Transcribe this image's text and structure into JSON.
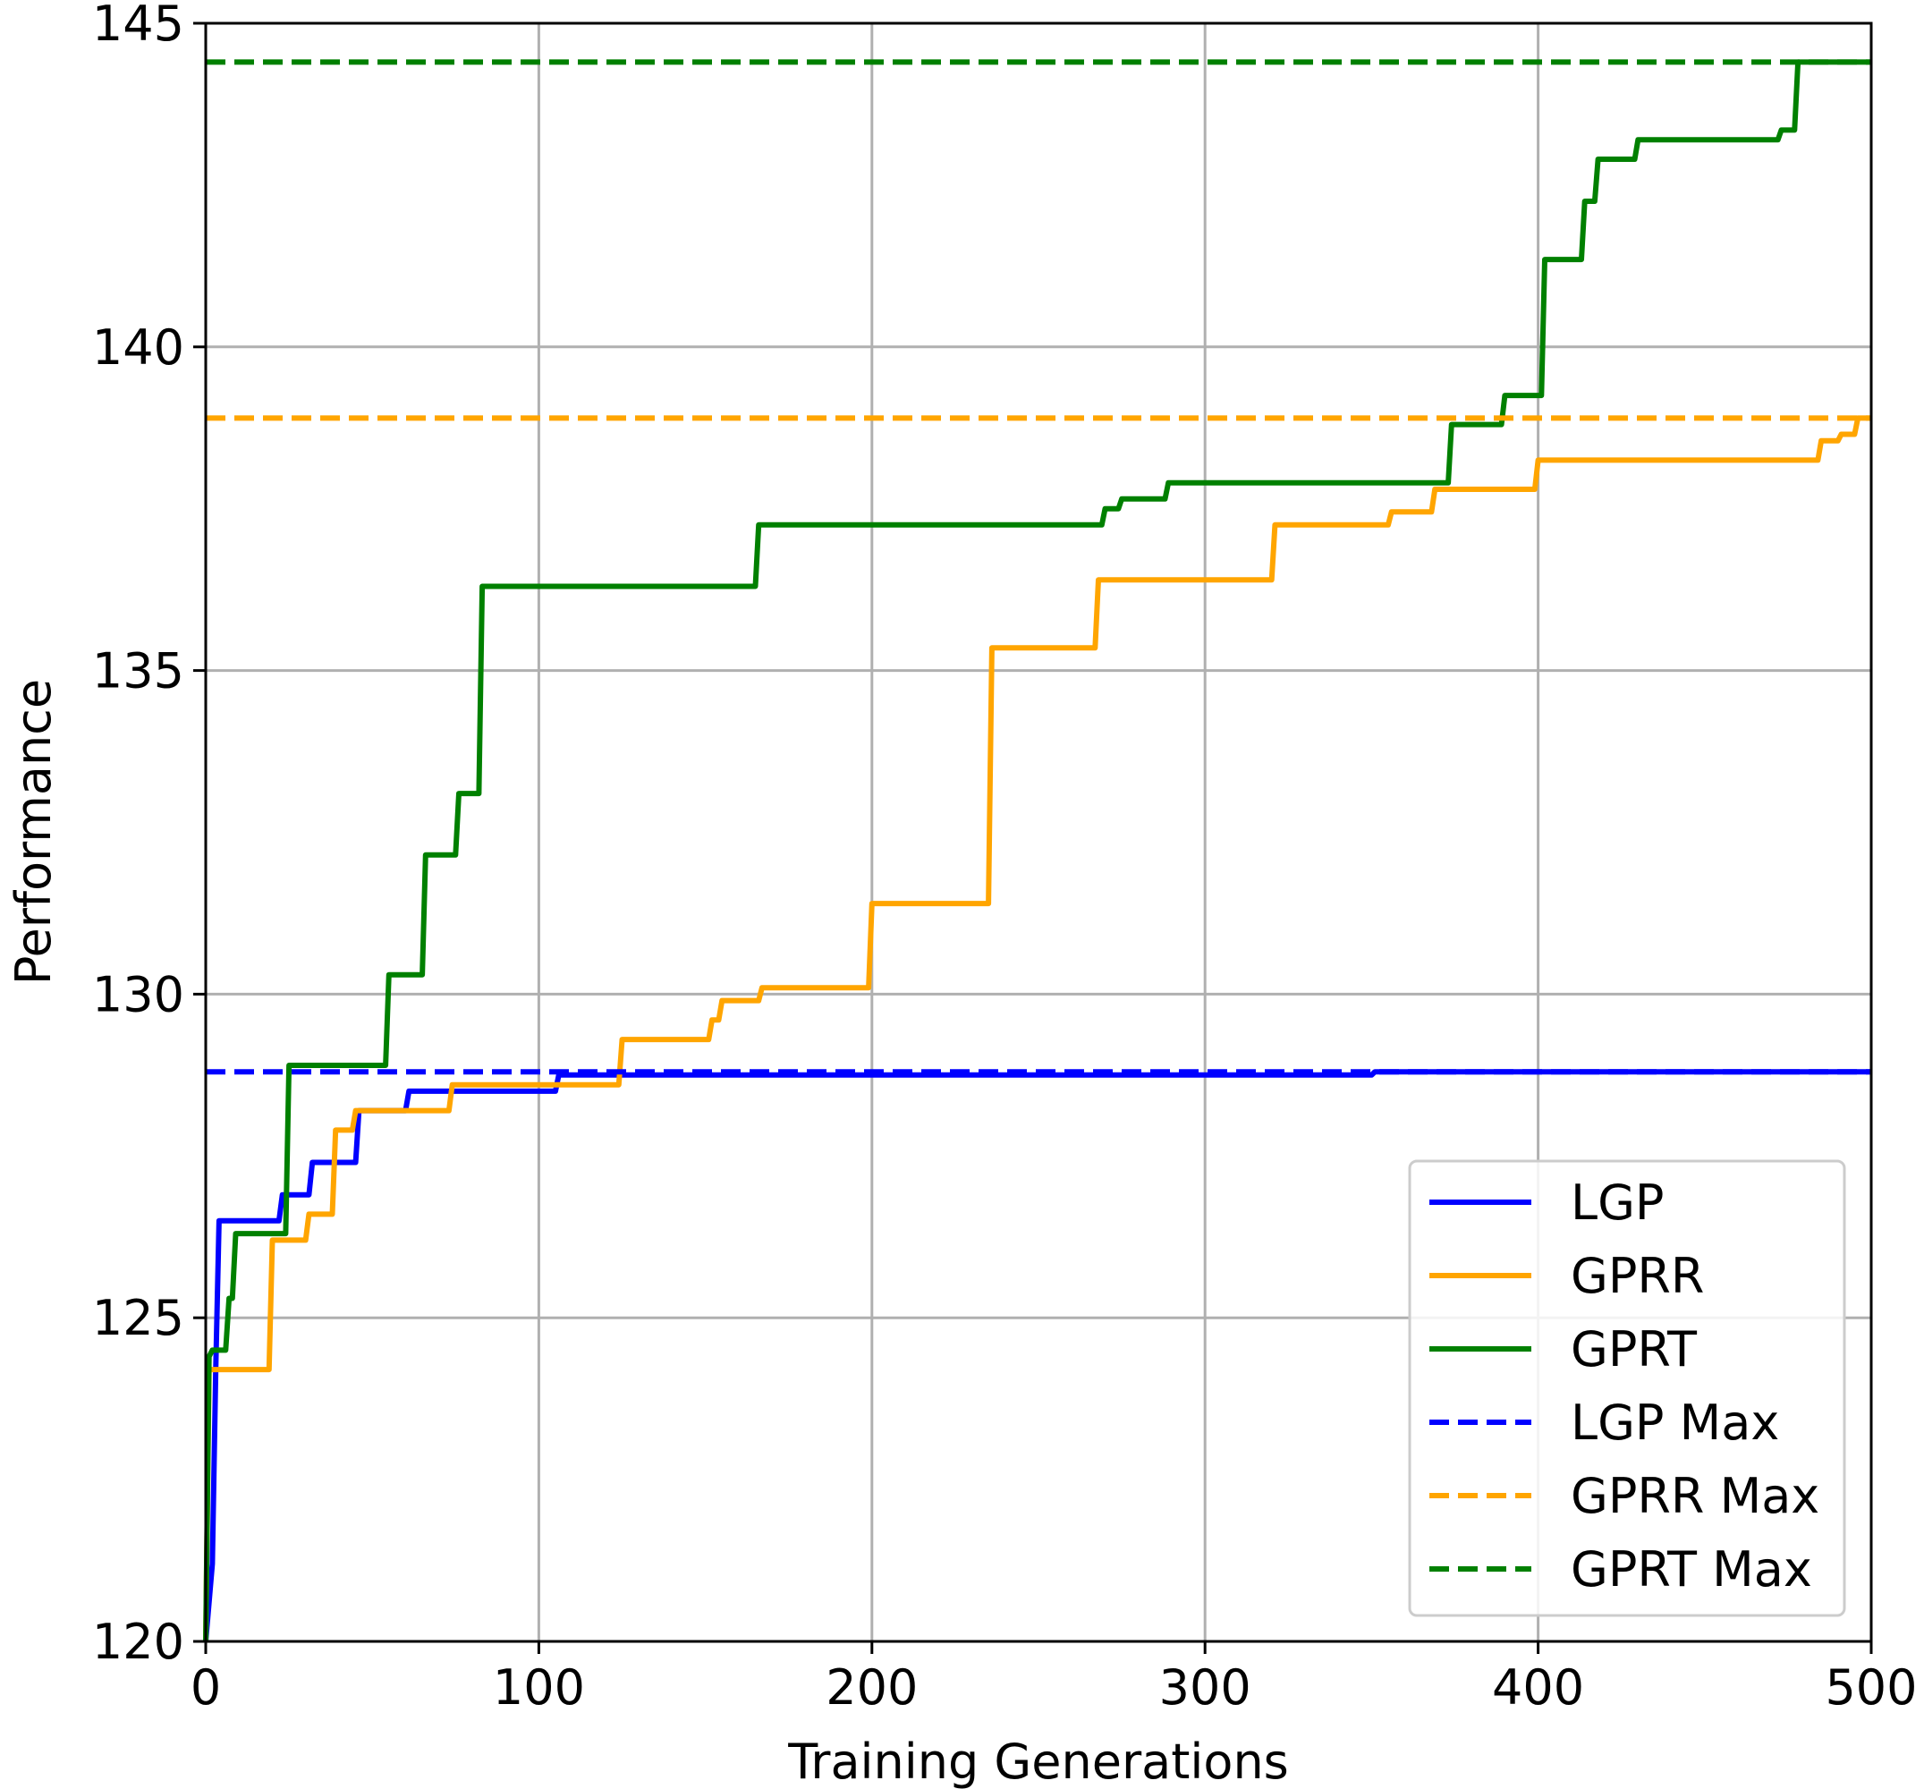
{
  "chart_data": {
    "type": "line",
    "title": "",
    "xlabel": "Training Generations",
    "ylabel": "Performance",
    "xlim": [
      0,
      500
    ],
    "ylim": [
      120,
      145
    ],
    "xticks": [
      0,
      100,
      200,
      300,
      400,
      500
    ],
    "xtick_labels": [
      "0",
      "100",
      "200",
      "300",
      "400",
      "500"
    ],
    "yticks": [
      120,
      125,
      130,
      135,
      140,
      145
    ],
    "ytick_labels": [
      "120",
      "125",
      "130",
      "135",
      "140",
      "145"
    ],
    "grid": true,
    "legend_position": "lower-right",
    "series": [
      {
        "name": "LGP",
        "color": "#0000ff",
        "style": "solid",
        "step": true,
        "points": [
          [
            0,
            120.0
          ],
          [
            2,
            121.2
          ],
          [
            3,
            124.2
          ],
          [
            4,
            126.5
          ],
          [
            22,
            126.5
          ],
          [
            23,
            126.9
          ],
          [
            31,
            126.9
          ],
          [
            32,
            127.4
          ],
          [
            45,
            127.4
          ],
          [
            46,
            128.2
          ],
          [
            60,
            128.2
          ],
          [
            61,
            128.5
          ],
          [
            105,
            128.5
          ],
          [
            106,
            128.75
          ],
          [
            350,
            128.75
          ],
          [
            351,
            128.8
          ],
          [
            500,
            128.8
          ]
        ]
      },
      {
        "name": "GPRR",
        "color": "#ffa500",
        "style": "solid",
        "step": true,
        "points": [
          [
            0,
            120.0
          ],
          [
            1,
            124.2
          ],
          [
            19,
            124.2
          ],
          [
            20,
            126.2
          ],
          [
            30,
            126.2
          ],
          [
            31,
            126.6
          ],
          [
            38,
            126.6
          ],
          [
            39,
            127.9
          ],
          [
            44,
            127.9
          ],
          [
            45,
            128.2
          ],
          [
            73,
            128.2
          ],
          [
            74,
            128.6
          ],
          [
            124,
            128.6
          ],
          [
            125,
            129.3
          ],
          [
            151,
            129.3
          ],
          [
            152,
            129.6
          ],
          [
            154,
            129.6
          ],
          [
            155,
            129.9
          ],
          [
            166,
            129.9
          ],
          [
            167,
            130.1
          ],
          [
            199,
            130.1
          ],
          [
            200,
            131.4
          ],
          [
            235,
            131.4
          ],
          [
            236,
            135.35
          ],
          [
            267,
            135.35
          ],
          [
            268,
            136.4
          ],
          [
            320,
            136.4
          ],
          [
            321,
            137.25
          ],
          [
            355,
            137.25
          ],
          [
            356,
            137.45
          ],
          [
            368,
            137.45
          ],
          [
            369,
            137.8
          ],
          [
            399,
            137.8
          ],
          [
            400,
            138.25
          ],
          [
            484,
            138.25
          ],
          [
            485,
            138.55
          ],
          [
            490,
            138.55
          ],
          [
            491,
            138.65
          ],
          [
            495,
            138.65
          ],
          [
            496,
            138.9
          ],
          [
            500,
            138.9
          ]
        ]
      },
      {
        "name": "GPRT",
        "color": "#008000",
        "style": "solid",
        "step": true,
        "points": [
          [
            0,
            120.0
          ],
          [
            1,
            124.4
          ],
          [
            2,
            124.5
          ],
          [
            6,
            124.5
          ],
          [
            7,
            125.3
          ],
          [
            8,
            125.3
          ],
          [
            9,
            126.3
          ],
          [
            24,
            126.3
          ],
          [
            25,
            128.9
          ],
          [
            54,
            128.9
          ],
          [
            55,
            130.3
          ],
          [
            65,
            130.3
          ],
          [
            66,
            132.15
          ],
          [
            75,
            132.15
          ],
          [
            76,
            133.1
          ],
          [
            82,
            133.1
          ],
          [
            83,
            136.3
          ],
          [
            165,
            136.3
          ],
          [
            166,
            137.25
          ],
          [
            269,
            137.25
          ],
          [
            270,
            137.5
          ],
          [
            274,
            137.5
          ],
          [
            275,
            137.65
          ],
          [
            288,
            137.65
          ],
          [
            289,
            137.9
          ],
          [
            373,
            137.9
          ],
          [
            374,
            138.8
          ],
          [
            389,
            138.8
          ],
          [
            390,
            139.25
          ],
          [
            401,
            139.25
          ],
          [
            402,
            141.35
          ],
          [
            413,
            141.35
          ],
          [
            414,
            142.25
          ],
          [
            417,
            142.25
          ],
          [
            418,
            142.9
          ],
          [
            429,
            142.9
          ],
          [
            430,
            143.2
          ],
          [
            472,
            143.2
          ],
          [
            473,
            143.35
          ],
          [
            477,
            143.35
          ],
          [
            478,
            144.4
          ],
          [
            500,
            144.4
          ]
        ]
      },
      {
        "name": "LGP Max",
        "color": "#0000ff",
        "style": "dashed",
        "step": false,
        "points": [
          [
            0,
            128.8
          ],
          [
            500,
            128.8
          ]
        ]
      },
      {
        "name": "GPRR Max",
        "color": "#ffa500",
        "style": "dashed",
        "step": false,
        "points": [
          [
            0,
            138.9
          ],
          [
            500,
            138.9
          ]
        ]
      },
      {
        "name": "GPRT Max",
        "color": "#008000",
        "style": "dashed",
        "step": false,
        "points": [
          [
            0,
            144.4
          ],
          [
            500,
            144.4
          ]
        ]
      }
    ]
  }
}
